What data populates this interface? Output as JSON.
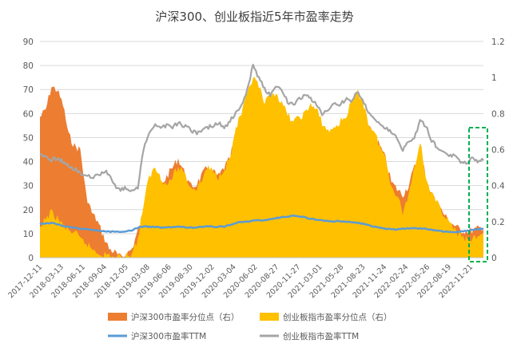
{
  "chart_data": {
    "type": "area",
    "title": "沪深300、创业板指近5年市盈率走势",
    "x_labels": [
      "2017-12-11",
      "2018-03-13",
      "2018-06-11",
      "2018-09-04",
      "2018-12-05",
      "2019-03-08",
      "2019-06-06",
      "2019-08-30",
      "2019-12-02",
      "2020-03-04",
      "2020-06-02",
      "2020-08-27",
      "2020-11-27",
      "2021-03-01",
      "2021-05-28",
      "2021-08-23",
      "2021-11-24",
      "2022-02-24",
      "2022-05-26",
      "2022-08-19",
      "2022-11-21"
    ],
    "y_left": {
      "ylim": [
        0,
        90
      ],
      "ticks": [
        0,
        10,
        20,
        30,
        40,
        50,
        60,
        70,
        80,
        90
      ]
    },
    "y_right": {
      "ylim": [
        0,
        1.2
      ],
      "ticks": [
        0,
        0.2,
        0.4,
        0.6,
        0.8,
        1,
        1.2
      ]
    },
    "legend_position": "bottom",
    "series": [
      {
        "name": "沪深300市盈率分位点（右）",
        "axis": "right",
        "kind": "area",
        "color": "#ED7D31",
        "values": [
          0.78,
          0.82,
          0.95,
          0.93,
          0.85,
          0.68,
          0.62,
          0.6,
          0.35,
          0.25,
          0.2,
          0.12,
          0.05,
          0.03,
          0.0,
          0.02,
          0.05,
          0.15,
          0.22,
          0.25,
          0.35,
          0.4,
          0.45,
          0.5,
          0.55,
          0.48,
          0.4,
          0.4,
          0.45,
          0.5,
          0.48,
          0.45,
          0.5,
          0.55,
          0.7,
          0.75,
          0.8,
          0.86,
          0.88,
          0.85,
          0.9,
          0.88,
          0.8,
          0.75,
          0.7,
          0.72,
          0.75,
          0.8,
          0.78,
          0.7,
          0.68,
          0.7,
          0.72,
          0.75,
          0.8,
          0.88,
          0.85,
          0.72,
          0.68,
          0.62,
          0.55,
          0.42,
          0.38,
          0.35,
          0.4,
          0.5,
          0.6,
          0.45,
          0.35,
          0.3,
          0.25,
          0.2,
          0.18,
          0.15,
          0.15,
          0.15,
          0.16,
          0.17
        ]
      },
      {
        "name": "创业板指市盈率分位点（右）",
        "axis": "right",
        "kind": "area",
        "color": "#FFC000",
        "values": [
          0.15,
          0.22,
          0.25,
          0.22,
          0.18,
          0.15,
          0.14,
          0.1,
          0.08,
          0.05,
          0.03,
          0.02,
          0.01,
          0.0,
          0.0,
          0.01,
          0.03,
          0.1,
          0.3,
          0.45,
          0.5,
          0.45,
          0.4,
          0.45,
          0.5,
          0.48,
          0.4,
          0.38,
          0.42,
          0.5,
          0.48,
          0.45,
          0.5,
          0.55,
          0.72,
          0.8,
          0.9,
          1.0,
          0.95,
          0.85,
          0.9,
          0.92,
          0.85,
          0.8,
          0.75,
          0.78,
          0.8,
          0.85,
          0.82,
          0.75,
          0.7,
          0.72,
          0.75,
          0.78,
          0.85,
          0.92,
          0.88,
          0.75,
          0.7,
          0.62,
          0.55,
          0.4,
          0.35,
          0.25,
          0.35,
          0.5,
          0.65,
          0.45,
          0.35,
          0.3,
          0.25,
          0.2,
          0.15,
          0.12,
          0.1,
          0.1,
          0.12,
          0.14
        ]
      },
      {
        "name": "沪深300市盈率TTM",
        "axis": "left",
        "kind": "line",
        "color": "#5B9BD5",
        "values": [
          14.0,
          14.2,
          14.5,
          14.0,
          13.2,
          12.8,
          12.5,
          12.0,
          11.8,
          11.5,
          11.3,
          11.0,
          10.8,
          10.8,
          10.6,
          10.8,
          11.5,
          12.5,
          13.0,
          12.8,
          12.8,
          12.5,
          12.6,
          12.8,
          12.9,
          12.7,
          12.5,
          12.6,
          12.8,
          13.0,
          12.9,
          12.8,
          13.0,
          13.5,
          14.5,
          14.8,
          15.0,
          15.5,
          15.5,
          15.6,
          16.0,
          16.5,
          16.8,
          17.0,
          17.5,
          17.2,
          16.8,
          16.2,
          15.8,
          15.5,
          15.2,
          15.0,
          15.2,
          15.0,
          14.8,
          14.5,
          14.2,
          13.5,
          13.0,
          12.5,
          12.0,
          11.8,
          11.8,
          12.0,
          12.2,
          12.3,
          12.2,
          12.0,
          11.7,
          11.2,
          10.9,
          10.7,
          10.6,
          10.8,
          11.2,
          11.5,
          11.8,
          12.0
        ]
      },
      {
        "name": "创业板指市盈率TTM",
        "axis": "left",
        "kind": "line",
        "color": "#A5A5A5",
        "values": [
          43.0,
          42.0,
          40.5,
          41.5,
          40.0,
          38.0,
          37.0,
          35.5,
          34.0,
          33.5,
          34.0,
          36.0,
          35.0,
          30.0,
          28.5,
          29.0,
          28.0,
          29.5,
          45.0,
          52.0,
          56.0,
          54.0,
          55.0,
          54.5,
          56.0,
          55.0,
          53.5,
          52.0,
          52.5,
          54.0,
          55.0,
          56.0,
          54.0,
          57.0,
          60.0,
          63.0,
          70.0,
          80.0,
          75.0,
          70.0,
          68.0,
          72.0,
          70.0,
          65.0,
          64.0,
          66.0,
          68.0,
          66.0,
          64.0,
          60.0,
          62.0,
          64.0,
          63.0,
          66.0,
          65.0,
          69.0,
          66.0,
          60.0,
          58.0,
          56.0,
          54.0,
          52.0,
          50.0,
          45.0,
          48.0,
          50.0,
          57.0,
          55.0,
          49.0,
          46.0,
          44.0,
          42.0,
          43.0,
          40.0,
          39.0,
          41.0,
          40.0,
          40.5
        ]
      }
    ]
  },
  "legend": {
    "items": [
      {
        "label": "沪深300市盈率分位点（右）",
        "color": "#ED7D31",
        "kind": "area"
      },
      {
        "label": "创业板指市盈率分位点（右）",
        "color": "#FFC000",
        "kind": "area"
      },
      {
        "label": "沪深300市盈率TTM",
        "color": "#5B9BD5",
        "kind": "line"
      },
      {
        "label": "创业板指市盈率TTM",
        "color": "#A5A5A5",
        "kind": "line"
      }
    ]
  },
  "highlight_box": {
    "color": "#00B050",
    "style": "dashed"
  }
}
